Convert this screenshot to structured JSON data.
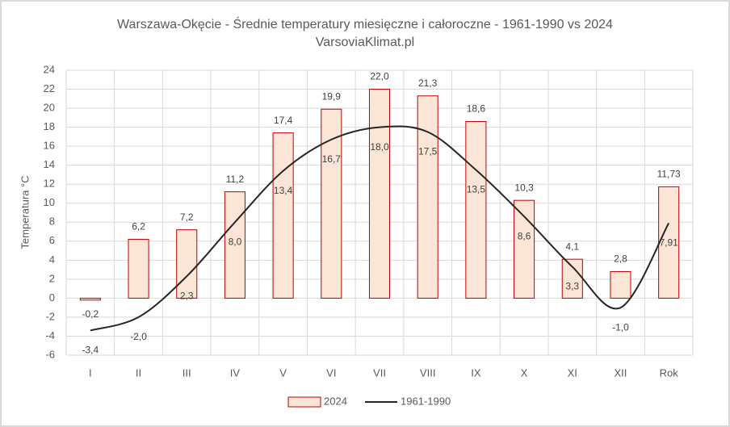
{
  "chart_data": {
    "type": "bar",
    "title": "Warszawa-Okęcie - Średnie temperatury miesięczne i całoroczne - 1961-1990 vs 2024",
    "subtitle": "VarsoviaKlimat.pl",
    "y_label": "Temperatura °C",
    "categories": [
      "I",
      "II",
      "III",
      "IV",
      "V",
      "VI",
      "VII",
      "VIII",
      "IX",
      "X",
      "XI",
      "XII",
      "Rok"
    ],
    "series": [
      {
        "name": "2024",
        "type": "bar",
        "color": "#fbe5d6",
        "stroke": "#c00000",
        "values": [
          -0.2,
          6.2,
          7.2,
          11.2,
          17.4,
          19.9,
          22.0,
          21.3,
          18.6,
          10.3,
          4.1,
          2.8,
          11.73
        ],
        "value_labels": [
          "-0,2",
          "6,2",
          "7,2",
          "11,2",
          "17,4",
          "19,9",
          "22,0",
          "21,3",
          "18,6",
          "10,3",
          "4,1",
          "2,8",
          "11,73"
        ]
      },
      {
        "name": "1961-1990",
        "type": "line",
        "color": "#262626",
        "values": [
          -3.4,
          -2.0,
          2.3,
          8.0,
          13.4,
          16.7,
          18.0,
          17.5,
          13.5,
          8.6,
          3.3,
          -1.0,
          7.91
        ],
        "value_labels": [
          "-3,4",
          "-2,0",
          "2,3",
          "8,0",
          "13,4",
          "16,7",
          "18,0",
          "17,5",
          "13,5",
          "8,6",
          "3,3",
          "-1,0",
          "7,91"
        ]
      }
    ],
    "ylim": [
      -6,
      24
    ],
    "yticks": [
      -6,
      -4,
      -2,
      0,
      2,
      4,
      6,
      8,
      10,
      12,
      14,
      16,
      18,
      20,
      22,
      24
    ],
    "grid": true,
    "legend": "bottom"
  }
}
